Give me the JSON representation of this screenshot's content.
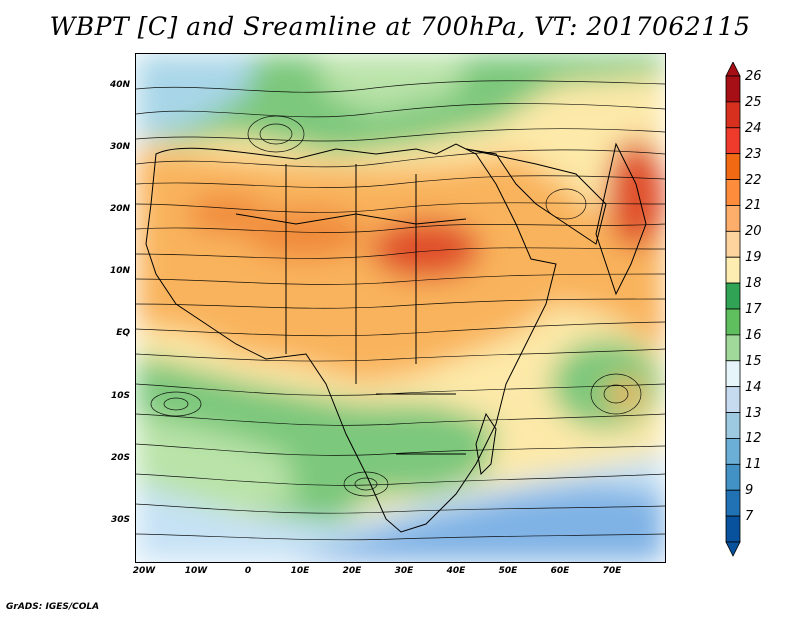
{
  "title": "WBPT [C] and Sreamline at 700hPa, VT: 2017062115",
  "footer": "GrADS: IGES/COLA",
  "map": {
    "lat_labels": [
      "40N",
      "30N",
      "20N",
      "10N",
      "EQ",
      "10S",
      "20S",
      "30S"
    ],
    "lon_labels": [
      "20W",
      "10W",
      "0",
      "10E",
      "20E",
      "30E",
      "40E",
      "50E",
      "60E",
      "70E"
    ]
  },
  "colorbar": {
    "labels": [
      "26",
      "25",
      "24",
      "23",
      "22",
      "21",
      "20",
      "19",
      "18",
      "17",
      "16",
      "15",
      "14",
      "13",
      "12",
      "11",
      "9",
      "7"
    ],
    "colors": [
      "#a50f15",
      "#d7301f",
      "#ef3b2c",
      "#f16913",
      "#fd8d3c",
      "#fdae6b",
      "#fdd49e",
      "#feedb0",
      "#31a354",
      "#5fbf5f",
      "#a1d99b",
      "#e5f5f9",
      "#c6dbef",
      "#9ecae1",
      "#6baed6",
      "#4292c6",
      "#2171b5",
      "#08519c"
    ]
  },
  "colors": {
    "cold_blue": "#7fb2e5",
    "light_blue": "#c6e2f5",
    "green": "#7cc87c",
    "light_green": "#b9e3a8",
    "yellow": "#fde9a9",
    "orange": "#f9b35c",
    "dark_orange": "#f08a3a",
    "red": "#e0502a"
  }
}
